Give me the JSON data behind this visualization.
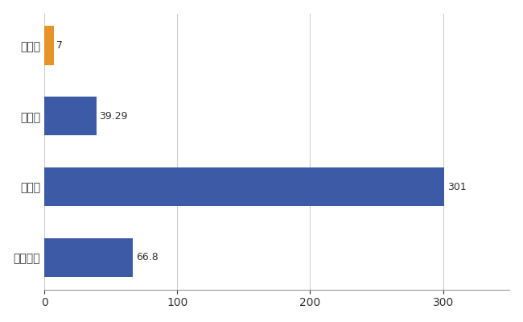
{
  "categories": [
    "全国平均",
    "県最大",
    "県平均",
    "吉賀町"
  ],
  "values": [
    66.8,
    301,
    39.29,
    7
  ],
  "bar_colors": [
    "#3C5AA6",
    "#3C5AA6",
    "#3C5AA6",
    "#E8922A"
  ],
  "value_labels": [
    "66.8",
    "301",
    "39.29",
    "7"
  ],
  "xlim": [
    0,
    350
  ],
  "xticks": [
    0,
    100,
    200,
    300
  ],
  "background_color": "#FFFFFF",
  "grid_color": "#CCCCCC",
  "figsize": [
    6.5,
    4.0
  ],
  "dpi": 100
}
